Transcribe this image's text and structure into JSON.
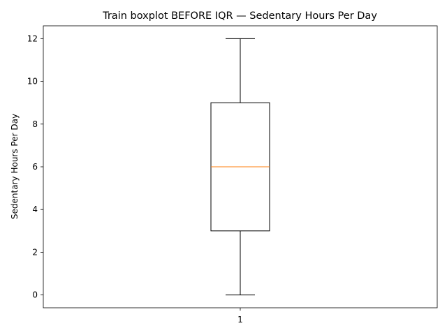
{
  "chart_data": {
    "type": "boxplot",
    "title": "Train boxplot BEFORE IQR — Sedentary Hours Per Day",
    "xlabel": "",
    "ylabel": "Sedentary Hours Per Day",
    "ylim": [
      -0.6,
      12.6
    ],
    "yticks": [
      0,
      2,
      4,
      6,
      8,
      10,
      12
    ],
    "ytick_labels": [
      "0",
      "2",
      "4",
      "6",
      "8",
      "10",
      "12"
    ],
    "xticks": [
      1
    ],
    "xtick_labels": [
      "1"
    ],
    "boxes": [
      {
        "position": 1,
        "whisker_low": 0,
        "q1": 3,
        "median": 6,
        "q3": 9,
        "whisker_high": 12
      }
    ],
    "grid": false,
    "colors": {
      "box": "#000000",
      "median": "#ff7f0e",
      "background": "#ffffff"
    }
  }
}
